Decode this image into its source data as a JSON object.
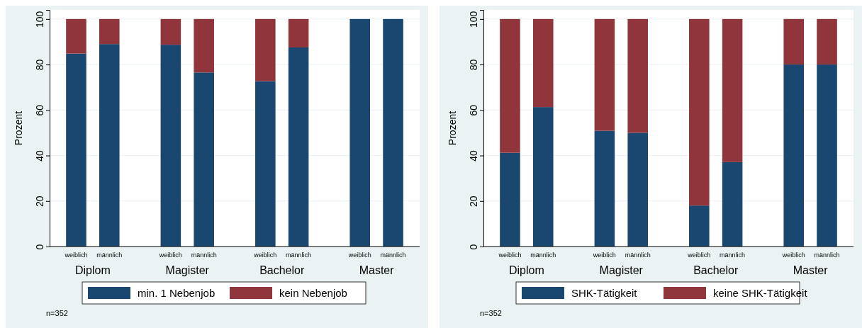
{
  "chart_data": [
    {
      "type": "bar",
      "stacked": true,
      "ylabel": "Prozent",
      "categories": [
        "weiblich",
        "männlich",
        "weiblich",
        "männlich",
        "weiblich",
        "männlich",
        "weiblich",
        "männlich"
      ],
      "ylim": [
        0,
        104
      ],
      "yticks": [
        0,
        20,
        40,
        60,
        80,
        100
      ],
      "grid": "y",
      "legend": "bottom",
      "annotations": [
        "Diplom",
        "Magister",
        "Bachelor",
        "Master",
        "n=352"
      ],
      "series": [
        {
          "name": "min. 1 Nebenjob",
          "color": "#1a476f",
          "values": [
            84.8,
            89.0,
            88.7,
            76.5,
            72.7,
            87.5,
            100,
            100
          ]
        },
        {
          "name": "kein Nebenjob",
          "color": "#90353b",
          "values": [
            15.2,
            11.0,
            11.3,
            23.5,
            27.3,
            12.5,
            0,
            0
          ]
        }
      ]
    },
    {
      "type": "bar",
      "stacked": true,
      "ylabel": "Prozent",
      "categories": [
        "weiblich",
        "männlich",
        "weiblich",
        "männlich",
        "weiblich",
        "männlich",
        "weiblich",
        "männlich"
      ],
      "ylim": [
        0,
        104
      ],
      "yticks": [
        0,
        20,
        40,
        60,
        80,
        100
      ],
      "grid": "y",
      "legend": "bottom",
      "annotations": [
        "Diplom",
        "Magister",
        "Bachelor",
        "Master",
        "n=352"
      ],
      "series": [
        {
          "name": "SHK-Tätigkeit",
          "color": "#1a476f",
          "values": [
            41.2,
            61.3,
            50.9,
            50.0,
            18.0,
            37.1,
            80,
            80
          ]
        },
        {
          "name": "keine SHK-Tätigkeit",
          "color": "#90353b",
          "values": [
            58.8,
            38.7,
            49.1,
            50.0,
            82.0,
            62.9,
            20,
            20
          ]
        }
      ]
    }
  ]
}
